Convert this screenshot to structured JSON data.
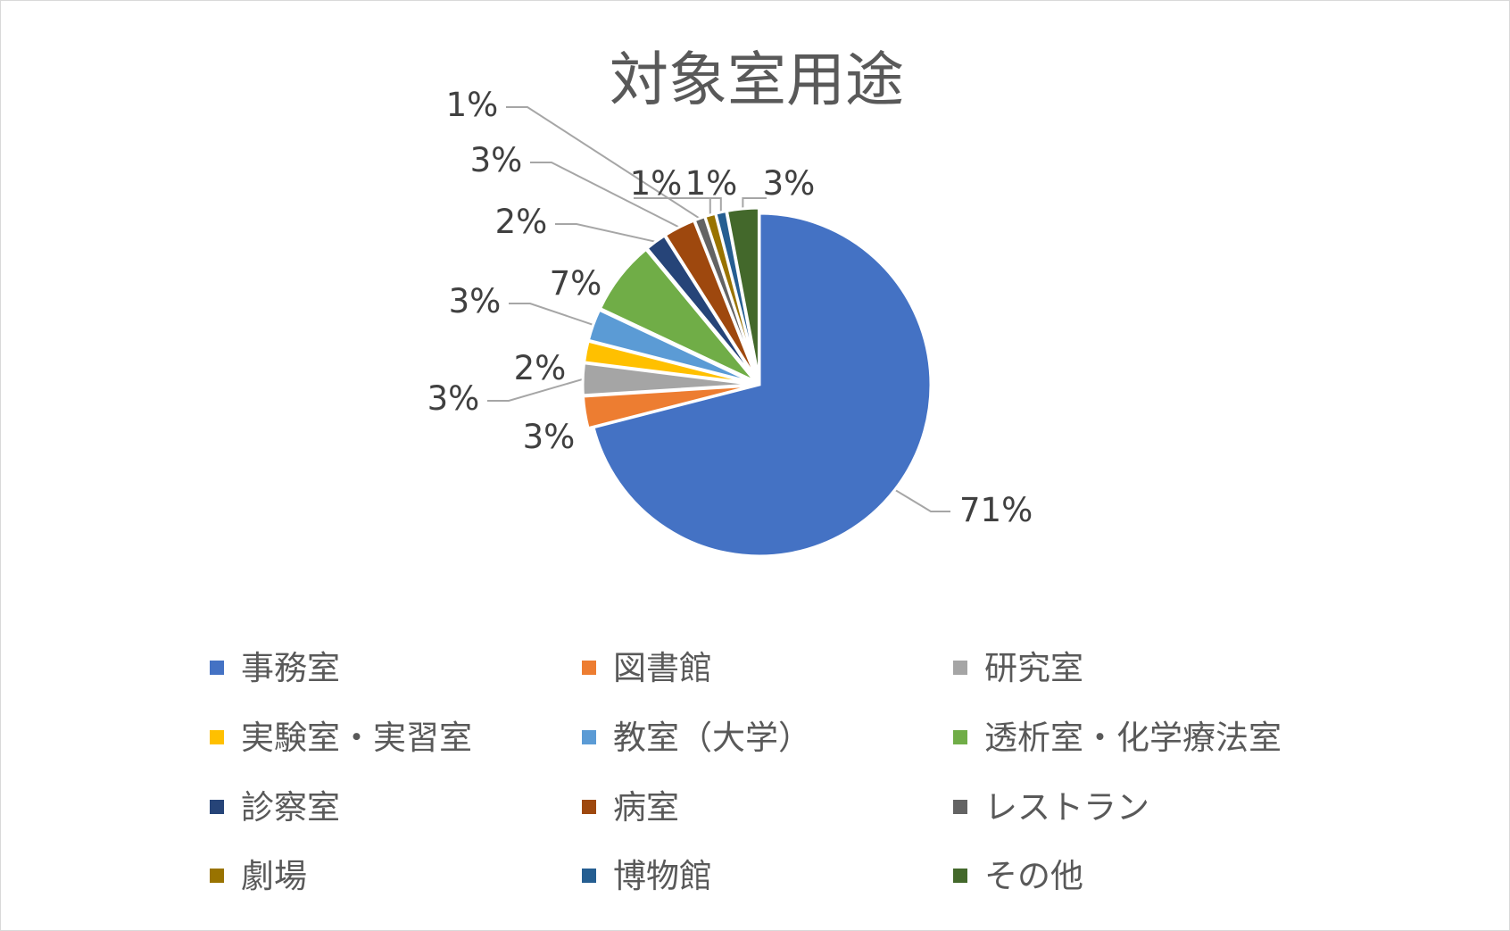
{
  "chart_data": {
    "type": "pie",
    "title": "対象室用途",
    "categories": [
      "事務室",
      "図書館",
      "研究室",
      "実験室・実習室",
      "教室（大学）",
      "透析室・化学療法室",
      "診察室",
      "病室",
      "レストラン",
      "劇場",
      "博物館",
      "その他"
    ],
    "values": [
      71,
      3,
      3,
      2,
      3,
      7,
      2,
      3,
      1,
      1,
      1,
      3
    ],
    "labels": [
      "71%",
      "3%",
      "3%",
      "2%",
      "3%",
      "7%",
      "2%",
      "3%",
      "1%",
      "1%",
      "1%",
      "3%"
    ],
    "colors": [
      "#4472C4",
      "#ED7D31",
      "#A5A5A5",
      "#FFC000",
      "#5B9BD5",
      "#70AD47",
      "#264478",
      "#9E480E",
      "#636363",
      "#997300",
      "#255E91",
      "#43682B"
    ],
    "legend_position": "bottom"
  }
}
